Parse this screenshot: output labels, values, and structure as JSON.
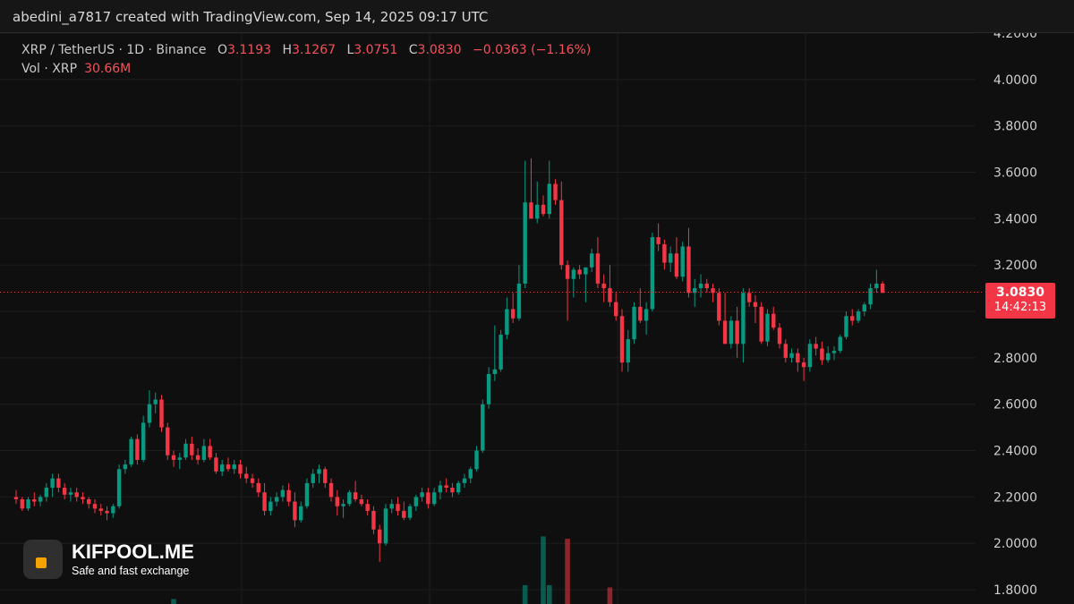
{
  "header": {
    "attribution": "abedini_a7817 created with TradingView.com, Sep 14, 2025 09:17 UTC"
  },
  "legend": {
    "symbol": "XRP / TetherUS · 1D · Binance",
    "open_label": "O",
    "open": "3.1193",
    "high_label": "H",
    "high": "3.1267",
    "low_label": "L",
    "low": "3.0751",
    "close_label": "C",
    "close": "3.0830",
    "change": "−0.0363 (−1.16%)",
    "vol_label": "Vol · XRP",
    "vol_value": "30.66M"
  },
  "price_tag": {
    "price": "3.0830",
    "countdown": "14:42:13"
  },
  "brand": {
    "name": "KIFPOOL.ME",
    "tagline": "Safe and fast exchange"
  },
  "colors": {
    "up": "#089981",
    "down": "#f23645",
    "background": "#0f0f0f",
    "grid": "#1d1d1d"
  },
  "chart_data": {
    "type": "candlestick",
    "title": "XRP / TetherUS · 1D · Binance",
    "y_axis_ticks": [
      "4.2000",
      "4.0000",
      "3.8000",
      "3.6000",
      "3.4000",
      "3.2000",
      "3.0000",
      "2.8000",
      "2.6000",
      "2.4000",
      "2.2000",
      "2.0000",
      "1.8000"
    ],
    "ylim": [
      1.76,
      4.22
    ],
    "last_price": 3.083,
    "grid": true,
    "candles": [
      [
        2.2,
        2.23,
        2.17,
        2.19
      ],
      [
        2.19,
        2.2,
        2.14,
        2.15
      ],
      [
        2.15,
        2.2,
        2.14,
        2.19
      ],
      [
        2.19,
        2.22,
        2.16,
        2.18
      ],
      [
        2.18,
        2.21,
        2.16,
        2.2
      ],
      [
        2.2,
        2.26,
        2.18,
        2.24
      ],
      [
        2.24,
        2.3,
        2.2,
        2.28
      ],
      [
        2.28,
        2.3,
        2.22,
        2.24
      ],
      [
        2.24,
        2.26,
        2.19,
        2.21
      ],
      [
        2.21,
        2.24,
        2.18,
        2.22
      ],
      [
        2.22,
        2.24,
        2.18,
        2.2
      ],
      [
        2.2,
        2.22,
        2.17,
        2.19
      ],
      [
        2.19,
        2.2,
        2.15,
        2.17
      ],
      [
        2.17,
        2.19,
        2.13,
        2.15
      ],
      [
        2.15,
        2.17,
        2.12,
        2.14
      ],
      [
        2.14,
        2.16,
        2.1,
        2.13
      ],
      [
        2.13,
        2.17,
        2.11,
        2.16
      ],
      [
        2.16,
        2.34,
        2.15,
        2.32
      ],
      [
        2.32,
        2.36,
        2.3,
        2.34
      ],
      [
        2.34,
        2.46,
        2.33,
        2.45
      ],
      [
        2.45,
        2.47,
        2.34,
        2.36
      ],
      [
        2.36,
        2.55,
        2.35,
        2.52
      ],
      [
        2.52,
        2.66,
        2.5,
        2.6
      ],
      [
        2.6,
        2.65,
        2.56,
        2.62
      ],
      [
        2.62,
        2.64,
        2.48,
        2.5
      ],
      [
        2.5,
        2.52,
        2.36,
        2.38
      ],
      [
        2.38,
        2.4,
        2.33,
        2.36
      ],
      [
        2.36,
        2.39,
        2.32,
        2.37
      ],
      [
        2.37,
        2.45,
        2.36,
        2.43
      ],
      [
        2.43,
        2.46,
        2.36,
        2.38
      ],
      [
        2.38,
        2.41,
        2.34,
        2.36
      ],
      [
        2.36,
        2.45,
        2.35,
        2.42
      ],
      [
        2.42,
        2.45,
        2.36,
        2.37
      ],
      [
        2.37,
        2.39,
        2.3,
        2.31
      ],
      [
        2.31,
        2.36,
        2.29,
        2.34
      ],
      [
        2.34,
        2.37,
        2.31,
        2.32
      ],
      [
        2.32,
        2.36,
        2.3,
        2.34
      ],
      [
        2.34,
        2.36,
        2.28,
        2.3
      ],
      [
        2.3,
        2.33,
        2.26,
        2.28
      ],
      [
        2.28,
        2.3,
        2.24,
        2.26
      ],
      [
        2.26,
        2.28,
        2.2,
        2.22
      ],
      [
        2.22,
        2.26,
        2.12,
        2.14
      ],
      [
        2.14,
        2.2,
        2.12,
        2.18
      ],
      [
        2.18,
        2.22,
        2.16,
        2.2
      ],
      [
        2.2,
        2.25,
        2.18,
        2.23
      ],
      [
        2.23,
        2.26,
        2.16,
        2.18
      ],
      [
        2.18,
        2.22,
        2.07,
        2.1
      ],
      [
        2.1,
        2.18,
        2.09,
        2.16
      ],
      [
        2.16,
        2.28,
        2.15,
        2.26
      ],
      [
        2.26,
        2.32,
        2.24,
        2.3
      ],
      [
        2.3,
        2.34,
        2.26,
        2.32
      ],
      [
        2.32,
        2.33,
        2.24,
        2.26
      ],
      [
        2.26,
        2.28,
        2.18,
        2.2
      ],
      [
        2.2,
        2.23,
        2.12,
        2.16
      ],
      [
        2.16,
        2.19,
        2.11,
        2.17
      ],
      [
        2.17,
        2.23,
        2.16,
        2.22
      ],
      [
        2.22,
        2.27,
        2.18,
        2.19
      ],
      [
        2.19,
        2.21,
        2.16,
        2.17
      ],
      [
        2.17,
        2.19,
        2.12,
        2.14
      ],
      [
        2.14,
        2.16,
        2.04,
        2.06
      ],
      [
        2.06,
        2.08,
        1.92,
        2.0
      ],
      [
        2.0,
        2.17,
        1.99,
        2.15
      ],
      [
        2.15,
        2.19,
        2.13,
        2.17
      ],
      [
        2.17,
        2.2,
        2.12,
        2.14
      ],
      [
        2.14,
        2.18,
        2.1,
        2.11
      ],
      [
        2.11,
        2.17,
        2.1,
        2.16
      ],
      [
        2.16,
        2.21,
        2.14,
        2.2
      ],
      [
        2.2,
        2.24,
        2.18,
        2.22
      ],
      [
        2.22,
        2.24,
        2.15,
        2.17
      ],
      [
        2.17,
        2.24,
        2.16,
        2.22
      ],
      [
        2.22,
        2.27,
        2.19,
        2.25
      ],
      [
        2.25,
        2.28,
        2.22,
        2.24
      ],
      [
        2.24,
        2.26,
        2.2,
        2.22
      ],
      [
        2.22,
        2.27,
        2.21,
        2.26
      ],
      [
        2.26,
        2.3,
        2.24,
        2.28
      ],
      [
        2.28,
        2.33,
        2.26,
        2.32
      ],
      [
        2.32,
        2.42,
        2.31,
        2.4
      ],
      [
        2.4,
        2.62,
        2.39,
        2.6
      ],
      [
        2.6,
        2.76,
        2.58,
        2.73
      ],
      [
        2.73,
        2.94,
        2.7,
        2.75
      ],
      [
        2.75,
        2.92,
        2.74,
        2.9
      ],
      [
        2.9,
        3.06,
        2.88,
        3.01
      ],
      [
        3.01,
        3.08,
        2.95,
        2.97
      ],
      [
        2.97,
        3.2,
        2.96,
        3.12
      ],
      [
        3.12,
        3.65,
        3.1,
        3.47
      ],
      [
        3.47,
        3.66,
        3.42,
        3.4
      ],
      [
        3.4,
        3.56,
        3.38,
        3.46
      ],
      [
        3.46,
        3.5,
        3.41,
        3.42
      ],
      [
        3.42,
        3.65,
        3.4,
        3.55
      ],
      [
        3.55,
        3.57,
        3.46,
        3.48
      ],
      [
        3.48,
        3.56,
        3.18,
        3.2
      ],
      [
        3.2,
        3.22,
        2.96,
        3.14
      ],
      [
        3.14,
        3.19,
        3.06,
        3.18
      ],
      [
        3.18,
        3.2,
        3.14,
        3.16
      ],
      [
        3.16,
        3.18,
        3.04,
        3.19
      ],
      [
        3.19,
        3.27,
        3.17,
        3.25
      ],
      [
        3.25,
        3.32,
        3.1,
        3.12
      ],
      [
        3.12,
        3.16,
        3.04,
        3.1
      ],
      [
        3.1,
        3.2,
        3.02,
        3.04
      ],
      [
        3.04,
        3.08,
        2.96,
        2.98
      ],
      [
        2.98,
        3.01,
        2.74,
        2.78
      ],
      [
        2.78,
        2.92,
        2.74,
        2.88
      ],
      [
        2.88,
        3.04,
        2.86,
        3.02
      ],
      [
        3.02,
        3.1,
        2.95,
        2.96
      ],
      [
        2.96,
        3.04,
        2.9,
        3.01
      ],
      [
        3.01,
        3.34,
        3.0,
        3.32
      ],
      [
        3.32,
        3.38,
        3.26,
        3.29
      ],
      [
        3.29,
        3.31,
        3.18,
        3.21
      ],
      [
        3.21,
        3.28,
        3.17,
        3.25
      ],
      [
        3.25,
        3.32,
        3.14,
        3.15
      ],
      [
        3.15,
        3.3,
        3.13,
        3.28
      ],
      [
        3.28,
        3.36,
        3.06,
        3.08
      ],
      [
        3.08,
        3.14,
        3.02,
        3.1
      ],
      [
        3.1,
        3.16,
        3.06,
        3.12
      ],
      [
        3.12,
        3.14,
        3.08,
        3.1
      ],
      [
        3.1,
        3.12,
        3.04,
        3.08
      ],
      [
        3.08,
        3.1,
        2.94,
        2.96
      ],
      [
        2.96,
        3.08,
        2.86,
        2.86
      ],
      [
        2.86,
        2.98,
        2.84,
        2.96
      ],
      [
        2.96,
        3.02,
        2.8,
        2.86
      ],
      [
        2.86,
        3.1,
        2.78,
        3.08
      ],
      [
        3.08,
        3.1,
        3.02,
        3.04
      ],
      [
        3.04,
        3.07,
        2.95,
        3.02
      ],
      [
        3.02,
        3.04,
        2.86,
        2.87
      ],
      [
        2.87,
        3.01,
        2.85,
        2.99
      ],
      [
        2.99,
        3.02,
        2.92,
        2.93
      ],
      [
        2.93,
        2.95,
        2.84,
        2.86
      ],
      [
        2.86,
        2.88,
        2.78,
        2.8
      ],
      [
        2.8,
        2.84,
        2.78,
        2.82
      ],
      [
        2.82,
        2.84,
        2.74,
        2.78
      ],
      [
        2.78,
        2.8,
        2.7,
        2.76
      ],
      [
        2.76,
        2.88,
        2.74,
        2.86
      ],
      [
        2.86,
        2.89,
        2.81,
        2.84
      ],
      [
        2.84,
        2.87,
        2.77,
        2.79
      ],
      [
        2.79,
        2.85,
        2.78,
        2.82
      ],
      [
        2.82,
        2.85,
        2.79,
        2.83
      ],
      [
        2.83,
        2.9,
        2.82,
        2.89
      ],
      [
        2.89,
        3.0,
        2.88,
        2.98
      ],
      [
        2.98,
        3.01,
        2.94,
        2.96
      ],
      [
        2.96,
        3.01,
        2.95,
        3.0
      ],
      [
        3.0,
        3.04,
        2.98,
        3.03
      ],
      [
        3.03,
        3.12,
        3.01,
        3.1
      ],
      [
        3.1,
        3.18,
        3.08,
        3.12
      ],
      [
        3.12,
        3.13,
        3.08,
        3.08
      ]
    ],
    "volume_visible": [
      {
        "index": 87,
        "color": "up",
        "top": 2.03
      },
      {
        "index": 91,
        "color": "down",
        "top": 2.02
      },
      {
        "index": 84,
        "color": "up",
        "top": 1.82
      },
      {
        "index": 88,
        "color": "up",
        "top": 1.82
      },
      {
        "index": 98,
        "color": "down",
        "top": 1.81
      },
      {
        "index": 26,
        "color": "up",
        "top": 1.76
      }
    ]
  }
}
